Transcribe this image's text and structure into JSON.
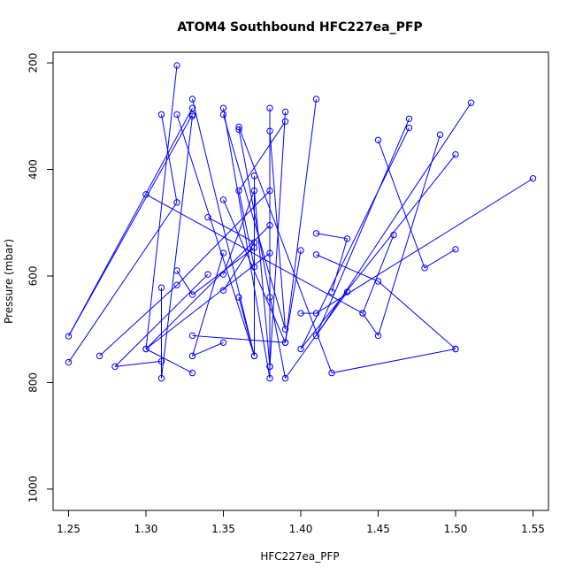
{
  "chart_data": {
    "type": "line",
    "title": "ATOM4 Southbound HFC227ea_PFP",
    "xlabel": "HFC227ea_PFP",
    "ylabel": "Pressure (mbar)",
    "xlim": [
      1.24,
      1.56
    ],
    "ylim": [
      1040,
      180
    ],
    "y_reversed": true,
    "x_ticks": [
      1.25,
      1.3,
      1.35,
      1.4,
      1.45,
      1.5,
      1.55
    ],
    "x_tick_labels": [
      "1.25",
      "1.30",
      "1.35",
      "1.40",
      "1.45",
      "1.50",
      "1.55"
    ],
    "y_ticks": [
      200,
      400,
      600,
      800,
      1000
    ],
    "y_tick_labels": [
      "200",
      "400",
      "600",
      "800",
      "1000"
    ],
    "grid": false,
    "series_color": "#0000ff",
    "profiles": [
      {
        "points": [
          [
            1.32,
            205
          ],
          [
            1.3,
            737
          ],
          [
            1.38,
            557
          ]
        ]
      },
      {
        "points": [
          [
            1.33,
            268
          ],
          [
            1.37,
            750
          ],
          [
            1.36,
            640
          ]
        ]
      },
      {
        "points": [
          [
            1.33,
            285
          ],
          [
            1.25,
            713
          ],
          [
            1.33,
            297
          ]
        ]
      },
      {
        "points": [
          [
            1.35,
            285
          ],
          [
            1.38,
            792
          ],
          [
            1.38,
            285
          ]
        ]
      },
      {
        "points": [
          [
            1.31,
            297
          ],
          [
            1.32,
            462
          ],
          [
            1.25,
            762
          ]
        ]
      },
      {
        "points": [
          [
            1.39,
            292
          ],
          [
            1.38,
            770
          ],
          [
            1.38,
            640
          ]
        ]
      },
      {
        "points": [
          [
            1.39,
            310
          ],
          [
            1.36,
            440
          ],
          [
            1.37,
            583
          ]
        ]
      },
      {
        "points": [
          [
            1.36,
            320
          ],
          [
            1.42,
            782
          ],
          [
            1.5,
            737
          ]
        ]
      },
      {
        "points": [
          [
            1.32,
            297
          ],
          [
            1.37,
            750
          ],
          [
            1.37,
            412
          ]
        ]
      },
      {
        "points": [
          [
            1.33,
            300
          ],
          [
            1.31,
            792
          ],
          [
            1.31,
            622
          ]
        ]
      },
      {
        "points": [
          [
            1.35,
            297
          ],
          [
            1.39,
            700
          ],
          [
            1.38,
            328
          ]
        ]
      },
      {
        "points": [
          [
            1.41,
            268
          ],
          [
            1.39,
            725
          ],
          [
            1.4,
            552
          ]
        ]
      },
      {
        "points": [
          [
            1.45,
            345
          ],
          [
            1.48,
            585
          ],
          [
            1.5,
            550
          ]
        ]
      },
      {
        "points": [
          [
            1.47,
            305
          ],
          [
            1.41,
            712
          ],
          [
            1.51,
            275
          ]
        ]
      },
      {
        "points": [
          [
            1.47,
            322
          ],
          [
            1.4,
            737
          ],
          [
            1.5,
            372
          ]
        ]
      },
      {
        "points": [
          [
            1.49,
            335
          ],
          [
            1.45,
            712
          ],
          [
            1.44,
            670
          ]
        ]
      },
      {
        "points": [
          [
            1.55,
            417
          ],
          [
            1.41,
            670
          ],
          [
            1.4,
            670
          ]
        ]
      },
      {
        "points": [
          [
            1.3,
            447
          ],
          [
            1.44,
            670
          ],
          [
            1.46,
            523
          ]
        ]
      },
      {
        "points": [
          [
            1.34,
            490
          ],
          [
            1.37,
            537
          ],
          [
            1.35,
            627
          ]
        ]
      },
      {
        "points": [
          [
            1.35,
            457
          ],
          [
            1.39,
            725
          ],
          [
            1.33,
            712
          ]
        ]
      },
      {
        "points": [
          [
            1.32,
            590
          ],
          [
            1.33,
            635
          ],
          [
            1.37,
            547
          ]
        ]
      },
      {
        "points": [
          [
            1.38,
            440
          ],
          [
            1.32,
            617
          ],
          [
            1.27,
            750
          ]
        ]
      },
      {
        "points": [
          [
            1.41,
            520
          ],
          [
            1.43,
            530
          ],
          [
            1.42,
            630
          ]
        ]
      },
      {
        "points": [
          [
            1.41,
            560
          ],
          [
            1.45,
            610
          ],
          [
            1.5,
            737
          ]
        ]
      },
      {
        "points": [
          [
            1.35,
            557
          ],
          [
            1.33,
            750
          ],
          [
            1.35,
            725
          ]
        ]
      },
      {
        "points": [
          [
            1.35,
            597
          ],
          [
            1.37,
            440
          ],
          [
            1.38,
            770
          ]
        ]
      },
      {
        "points": [
          [
            1.34,
            597
          ],
          [
            1.28,
            770
          ],
          [
            1.31,
            760
          ]
        ]
      },
      {
        "points": [
          [
            1.38,
            505
          ],
          [
            1.3,
            737
          ],
          [
            1.33,
            782
          ]
        ]
      },
      {
        "points": [
          [
            1.36,
            325
          ],
          [
            1.39,
            792
          ],
          [
            1.43,
            630
          ]
        ]
      }
    ]
  }
}
